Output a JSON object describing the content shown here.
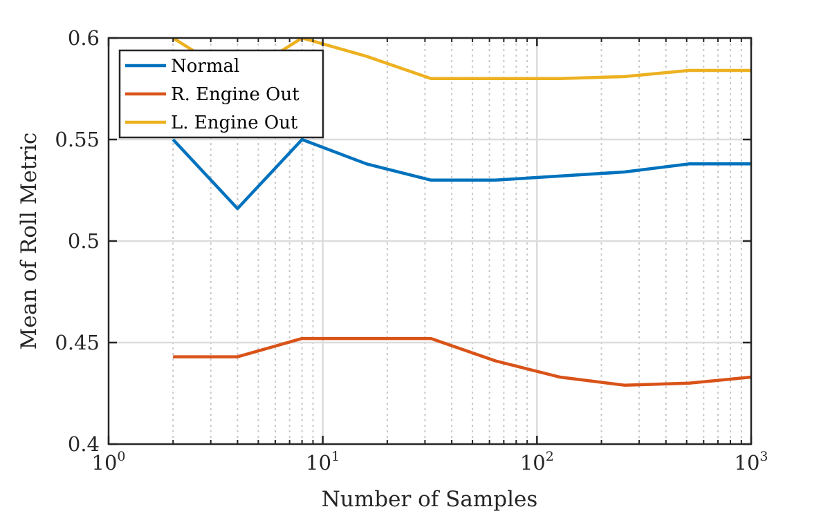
{
  "chart_data": {
    "type": "line",
    "xlabel": "Number of Samples",
    "ylabel": "Mean of Roll Metric",
    "xscale": "log",
    "xlim": [
      1,
      1000
    ],
    "ylim": [
      0.4,
      0.6
    ],
    "grid": true,
    "legend_position": "top-left",
    "x_ticks": [
      {
        "base": "10",
        "exp": "0"
      },
      {
        "base": "10",
        "exp": "1"
      },
      {
        "base": "10",
        "exp": "2"
      },
      {
        "base": "10",
        "exp": "3"
      }
    ],
    "y_ticks": [
      "0.4",
      "0.45",
      "0.5",
      "0.55",
      "0.6"
    ],
    "x": [
      2,
      4,
      8,
      16,
      32,
      64,
      128,
      256,
      512,
      1000
    ],
    "series": [
      {
        "name": "Normal",
        "color": "#0072BD",
        "values": [
          0.55,
          0.516,
          0.55,
          0.538,
          0.53,
          0.53,
          0.532,
          0.534,
          0.538,
          0.538
        ]
      },
      {
        "name": "R. Engine Out",
        "color": "#D95319",
        "values": [
          0.443,
          0.443,
          0.452,
          0.452,
          0.452,
          0.441,
          0.433,
          0.429,
          0.43,
          0.433
        ]
      },
      {
        "name": "L. Engine Out",
        "color": "#EDB120",
        "values": [
          0.6,
          0.58,
          0.6,
          0.591,
          0.58,
          0.58,
          0.58,
          0.581,
          0.584,
          0.584
        ]
      }
    ]
  }
}
